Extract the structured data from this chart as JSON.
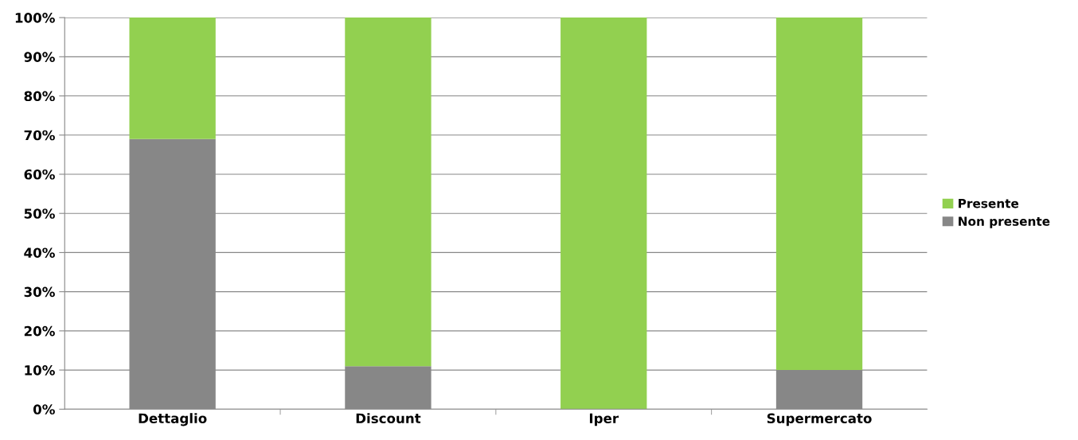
{
  "chart_data": {
    "type": "bar",
    "stacked": true,
    "categories": [
      "Dettaglio",
      "Discount",
      "Iper",
      "Supermercato"
    ],
    "series": [
      {
        "name": "Non presente",
        "color": "#878787",
        "values": [
          69,
          11,
          0,
          10
        ]
      },
      {
        "name": "Presente",
        "color": "#92d050",
        "values": [
          31,
          89,
          100,
          90
        ]
      }
    ],
    "ylim": [
      0,
      100
    ],
    "yticks": [
      {
        "value": 0,
        "label": "0%"
      },
      {
        "value": 10,
        "label": "10%"
      },
      {
        "value": 20,
        "label": "20%"
      },
      {
        "value": 30,
        "label": "30%"
      },
      {
        "value": 40,
        "label": "40%"
      },
      {
        "value": 50,
        "label": "50%"
      },
      {
        "value": 60,
        "label": "60%"
      },
      {
        "value": 70,
        "label": "70%"
      },
      {
        "value": 80,
        "label": "80%"
      },
      {
        "value": 90,
        "label": "90%"
      },
      {
        "value": 100,
        "label": "100%"
      }
    ],
    "grid": "y",
    "legend": "right"
  }
}
